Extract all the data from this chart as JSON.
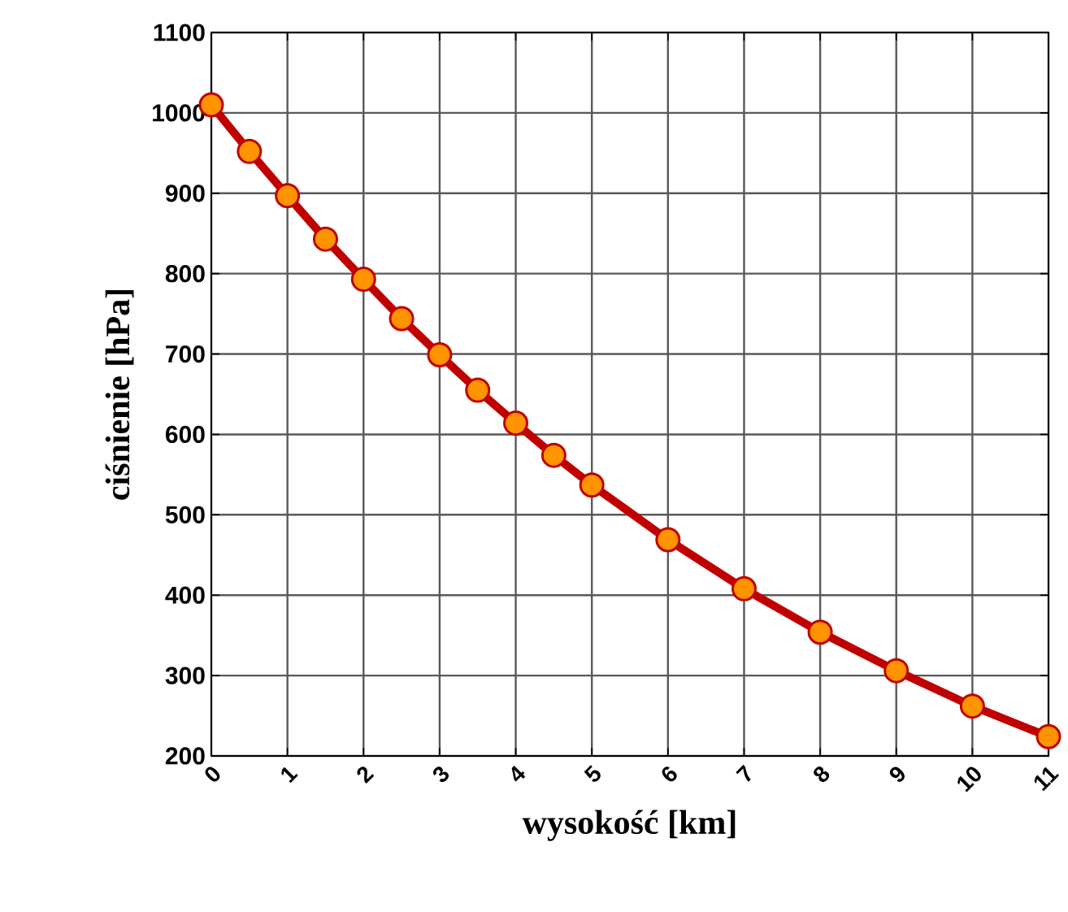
{
  "chart_data": {
    "type": "line",
    "xlabel": "wysokość [km]",
    "ylabel": "ciśnienie [hPa]",
    "x": [
      0,
      0.5,
      1,
      1.5,
      2,
      2.5,
      3,
      3.5,
      4,
      4.5,
      5,
      6,
      7,
      8,
      9,
      10,
      11
    ],
    "series": [
      {
        "color": "#c00000",
        "values": [
          1010,
          952,
          897,
          843,
          793,
          744,
          699,
          655,
          614,
          574,
          537,
          469,
          408,
          354,
          306,
          262,
          224
        ]
      }
    ],
    "xlim": [
      0,
      11
    ],
    "xticks": [
      0,
      1,
      2,
      3,
      4,
      5,
      6,
      7,
      8,
      9,
      10,
      11
    ],
    "ylim": [
      200,
      1100
    ],
    "yticks": [
      200,
      300,
      400,
      500,
      600,
      700,
      800,
      900,
      1000,
      1100
    ],
    "grid": true,
    "marker": "circle",
    "line_style": "solid"
  }
}
